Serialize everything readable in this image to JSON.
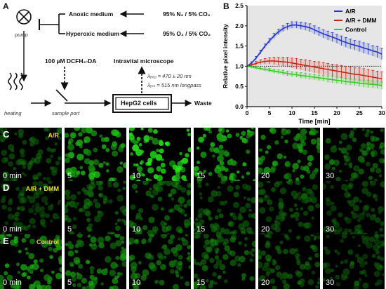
{
  "panels": {
    "A": "A",
    "B": "B",
    "C": "C",
    "D": "D",
    "E": "E"
  },
  "diagram": {
    "pump": "pump",
    "anoxic": "Anoxic medium",
    "hyperoxic": "Hyperoxic medium",
    "gas_anoxic": "95% N₂ / 5% CO₂",
    "gas_hyperoxic": "95% O₂ / 5% CO₂",
    "dye": "100 µM DCFH₂-DA",
    "microscope": "Intravital microscope",
    "lambda_exc": "λₑₓ₀ = 470 ± 20 nm",
    "lambda_em": "λₑₘ = 515 nm longpass",
    "heating": "heating",
    "sample_port": "sample port",
    "cells": "HepG2 cells",
    "waste": "Waste"
  },
  "chart_data": {
    "type": "line",
    "xlabel": "Time [min]",
    "ylabel": "Relative pixel intensity",
    "xlim": [
      0,
      30
    ],
    "ylim": [
      0.0,
      2.5
    ],
    "xticks": [
      0,
      5,
      10,
      15,
      20,
      25,
      30
    ],
    "yticks": [
      0.0,
      0.5,
      1.0,
      1.5,
      2.0,
      2.5
    ],
    "reference_line": 1.0,
    "legend_position": "top-right",
    "x": [
      0,
      1,
      2,
      3,
      4,
      5,
      6,
      7,
      8,
      9,
      10,
      11,
      12,
      13,
      14,
      15,
      16,
      17,
      18,
      19,
      20,
      21,
      22,
      23,
      24,
      25,
      26,
      27,
      28,
      29,
      30
    ],
    "series": [
      {
        "name": "A/R",
        "color": "#2233cc",
        "values": [
          1.0,
          1.08,
          1.2,
          1.35,
          1.5,
          1.63,
          1.75,
          1.85,
          1.93,
          1.98,
          2.02,
          2.02,
          2.0,
          1.98,
          1.95,
          1.9,
          1.85,
          1.8,
          1.76,
          1.72,
          1.68,
          1.63,
          1.59,
          1.55,
          1.52,
          1.49,
          1.45,
          1.42,
          1.38,
          1.35,
          1.3
        ],
        "errors": [
          0,
          0.03,
          0.04,
          0.05,
          0.05,
          0.06,
          0.06,
          0.07,
          0.07,
          0.08,
          0.08,
          0.08,
          0.09,
          0.09,
          0.1,
          0.1,
          0.1,
          0.1,
          0.11,
          0.11,
          0.11,
          0.12,
          0.12,
          0.12,
          0.12,
          0.13,
          0.13,
          0.13,
          0.13,
          0.14,
          0.14
        ]
      },
      {
        "name": "A/R + DMM",
        "color": "#cc2211",
        "values": [
          1.0,
          1.03,
          1.07,
          1.1,
          1.12,
          1.13,
          1.13,
          1.12,
          1.11,
          1.1,
          1.08,
          1.06,
          1.04,
          1.02,
          1.0,
          0.98,
          0.96,
          0.94,
          0.92,
          0.9,
          0.88,
          0.86,
          0.84,
          0.82,
          0.8,
          0.79,
          0.77,
          0.75,
          0.73,
          0.71,
          0.69
        ],
        "errors": [
          0,
          0.03,
          0.05,
          0.06,
          0.07,
          0.08,
          0.09,
          0.1,
          0.11,
          0.12,
          0.12,
          0.13,
          0.13,
          0.14,
          0.14,
          0.14,
          0.15,
          0.15,
          0.15,
          0.15,
          0.16,
          0.16,
          0.16,
          0.16,
          0.16,
          0.17,
          0.17,
          0.17,
          0.17,
          0.17,
          0.17
        ]
      },
      {
        "name": "Control",
        "color": "#33cc22",
        "values": [
          1.0,
          0.98,
          0.96,
          0.94,
          0.92,
          0.9,
          0.88,
          0.86,
          0.84,
          0.82,
          0.8,
          0.79,
          0.77,
          0.76,
          0.74,
          0.73,
          0.71,
          0.7,
          0.68,
          0.67,
          0.65,
          0.64,
          0.62,
          0.61,
          0.6,
          0.58,
          0.57,
          0.56,
          0.55,
          0.54,
          0.52
        ],
        "errors": [
          0,
          0.02,
          0.03,
          0.04,
          0.04,
          0.05,
          0.05,
          0.05,
          0.06,
          0.06,
          0.06,
          0.06,
          0.07,
          0.07,
          0.07,
          0.07,
          0.07,
          0.07,
          0.08,
          0.08,
          0.08,
          0.08,
          0.08,
          0.08,
          0.08,
          0.08,
          0.09,
          0.09,
          0.09,
          0.09,
          0.09
        ]
      }
    ]
  },
  "micrographs": {
    "times": [
      "0 min",
      "5",
      "10",
      "15",
      "20",
      "30"
    ],
    "rows": [
      {
        "letter": "C",
        "label": "A/R",
        "brightness": [
          0.35,
          0.75,
          0.95,
          0.8,
          0.65,
          0.45
        ]
      },
      {
        "letter": "D",
        "label": "A/R + DMM",
        "brightness": [
          0.3,
          0.42,
          0.45,
          0.4,
          0.35,
          0.3
        ]
      },
      {
        "letter": "E",
        "label": "Control",
        "brightness": [
          0.7,
          0.6,
          0.5,
          0.45,
          0.38,
          0.3
        ]
      }
    ]
  }
}
